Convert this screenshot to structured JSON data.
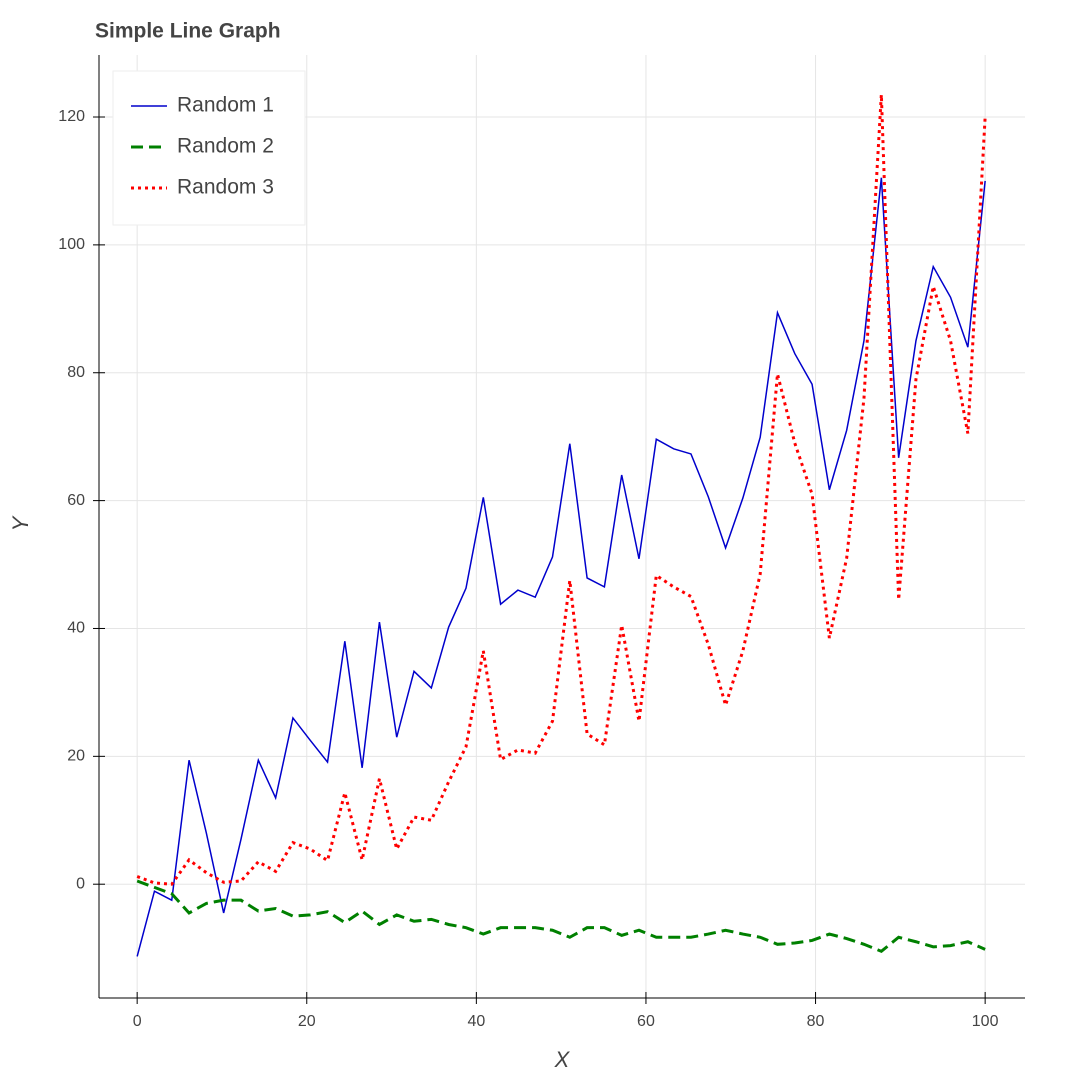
{
  "chart_data": {
    "type": "line",
    "title": "Simple Line Graph",
    "x_label": "X",
    "y_label": "Y",
    "x": [
      0,
      2.04,
      4.08,
      6.12,
      8.16,
      10.2,
      12.24,
      14.29,
      16.33,
      18.37,
      20.41,
      22.45,
      24.49,
      26.53,
      28.57,
      30.61,
      32.65,
      34.69,
      36.73,
      38.78,
      40.82,
      42.86,
      44.9,
      46.94,
      48.98,
      51.02,
      53.06,
      55.1,
      57.14,
      59.18,
      61.22,
      63.27,
      65.31,
      67.35,
      69.39,
      71.43,
      73.47,
      75.51,
      77.55,
      79.59,
      81.63,
      83.67,
      85.71,
      87.76,
      89.8,
      91.84,
      93.88,
      95.92,
      97.96,
      100
    ],
    "series": [
      {
        "name": "Random 1",
        "color": "#0000cc",
        "dash": "solid",
        "values": [
          -11.3,
          -1.1,
          -2.5,
          19.4,
          8,
          -4.5,
          7,
          19.4,
          13.5,
          26,
          22.5,
          19.1,
          38,
          18.2,
          41,
          23,
          33.3,
          30.7,
          40.2,
          46.3,
          60.5,
          43.8,
          46,
          44.9,
          51.2,
          68.9,
          47.9,
          46.5,
          64,
          50.9,
          69.6,
          68.1,
          67.3,
          60.6,
          52.6,
          60.4,
          69.9,
          89.4,
          83,
          78.2,
          61.7,
          71,
          85,
          110.5,
          66.7,
          85,
          96.6,
          91.8,
          84,
          110
        ]
      },
      {
        "name": "Random 2",
        "color": "#008000",
        "dash": "dashed",
        "values": [
          0.5,
          -0.5,
          -1.5,
          -4.5,
          -3,
          -2.5,
          -2.5,
          -4.2,
          -3.8,
          -5,
          -4.8,
          -4.3,
          -6,
          -4.2,
          -6.3,
          -4.8,
          -5.8,
          -5.5,
          -6.3,
          -6.8,
          -7.8,
          -6.8,
          -6.8,
          -6.8,
          -7.2,
          -8.3,
          -6.8,
          -6.8,
          -8,
          -7.2,
          -8.3,
          -8.3,
          -8.3,
          -7.8,
          -7.2,
          -7.8,
          -8.3,
          -9.4,
          -9.2,
          -8.8,
          -7.8,
          -8.5,
          -9.4,
          -10.5,
          -8.3,
          -9,
          -9.8,
          -9.6,
          -9,
          -10.2
        ]
      },
      {
        "name": "Random 3",
        "color": "#ff0000",
        "dash": "dotted",
        "values": [
          1.2,
          0.2,
          0,
          3.8,
          1.8,
          0.3,
          0.5,
          3.5,
          2,
          6.5,
          5.5,
          3.7,
          14.3,
          3.8,
          16.5,
          5.5,
          10.5,
          10,
          16,
          21.5,
          36.5,
          19.5,
          21,
          20.5,
          25.5,
          47.5,
          23.5,
          21.8,
          40.5,
          25.5,
          48.3,
          46.5,
          45,
          37.5,
          28,
          36.5,
          48.5,
          79.8,
          69,
          61,
          38.5,
          51,
          76,
          123.5,
          44.5,
          79,
          93.5,
          85,
          70.5,
          120
        ]
      }
    ],
    "xlim": [
      -4.5,
      104.7
    ],
    "ylim": [
      -17.8,
      129.7
    ],
    "xticks": [
      0,
      20,
      40,
      60,
      80,
      100
    ],
    "yticks": [
      0,
      20,
      40,
      60,
      80,
      100,
      120
    ],
    "grid": true,
    "legend_position": "top-left"
  }
}
